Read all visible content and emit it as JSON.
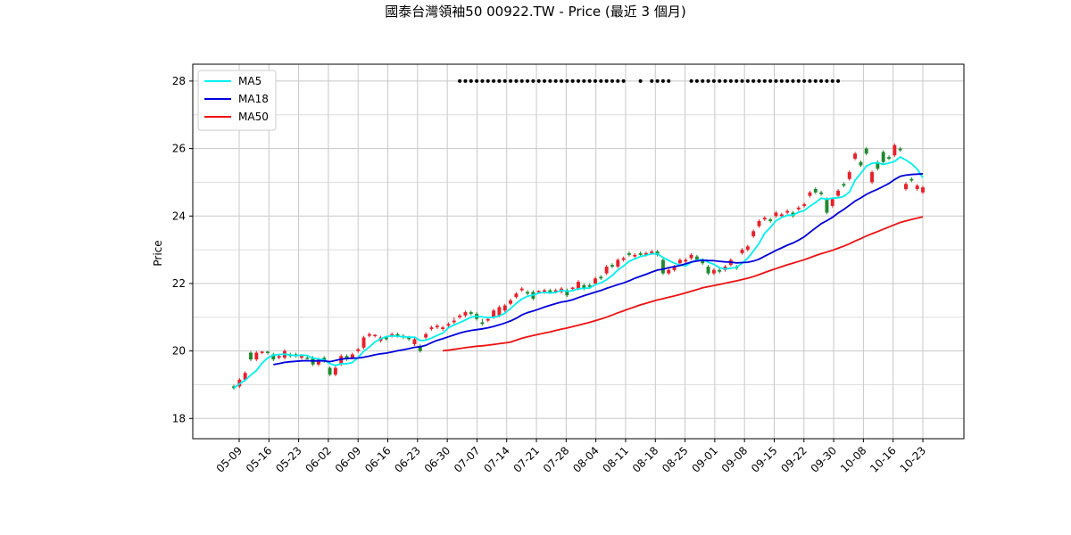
{
  "chart_data": {
    "type": "candlestick",
    "title": "國泰台灣領袖50 00922.TW - Price (最近 3 個月)",
    "ylabel": "Price",
    "xlabel": "",
    "ylim": [
      17.4,
      28.5
    ],
    "yticks": [
      18,
      20,
      22,
      24,
      26,
      28
    ],
    "xtick_labels": [
      "05-09",
      "05-16",
      "05-23",
      "06-02",
      "06-09",
      "06-16",
      "06-23",
      "06-30",
      "07-07",
      "07-14",
      "07-21",
      "07-28",
      "08-04",
      "08-11",
      "08-18",
      "08-25",
      "09-01",
      "09-08",
      "09-15",
      "09-22",
      "09-30",
      "10-08",
      "10-16",
      "10-23"
    ],
    "grid": true,
    "legend_position": "upper-left",
    "up_color": "#e8202a",
    "down_color": "#1f8a2e",
    "series": [
      {
        "name": "MA5",
        "color": "#00f0f0"
      },
      {
        "name": "MA18",
        "color": "#0000dd"
      },
      {
        "name": "MA50",
        "color": "#ee1111"
      }
    ],
    "candles": [
      [
        18.95,
        18.9,
        19.0,
        18.85
      ],
      [
        18.95,
        19.15,
        19.2,
        18.9
      ],
      [
        19.15,
        19.35,
        19.4,
        19.1
      ],
      [
        19.95,
        19.75,
        20.0,
        19.7
      ],
      [
        19.75,
        19.95,
        20.0,
        19.7
      ],
      [
        19.95,
        19.98,
        20.0,
        19.9
      ],
      [
        19.98,
        19.95,
        20.0,
        19.9
      ],
      [
        19.9,
        19.75,
        19.95,
        19.7
      ],
      [
        19.8,
        19.85,
        19.9,
        19.75
      ],
      [
        19.8,
        20.0,
        20.05,
        19.75
      ],
      [
        19.9,
        19.85,
        19.95,
        19.8
      ],
      [
        19.9,
        19.85,
        19.95,
        19.8
      ],
      [
        19.8,
        19.85,
        19.9,
        19.75
      ],
      [
        19.8,
        19.78,
        19.85,
        19.75
      ],
      [
        19.8,
        19.6,
        19.85,
        19.55
      ],
      [
        19.6,
        19.75,
        19.8,
        19.55
      ],
      [
        19.8,
        19.7,
        19.85,
        19.65
      ],
      [
        19.5,
        19.3,
        19.55,
        19.25
      ],
      [
        19.3,
        19.5,
        19.55,
        19.25
      ],
      [
        19.6,
        19.85,
        19.9,
        19.55
      ],
      [
        19.85,
        19.75,
        19.9,
        19.7
      ],
      [
        19.8,
        19.9,
        19.95,
        19.75
      ],
      [
        20.0,
        20.05,
        20.1,
        19.95
      ],
      [
        20.1,
        20.4,
        20.45,
        20.05
      ],
      [
        20.45,
        20.5,
        20.55,
        20.4
      ],
      [
        20.45,
        20.48,
        20.5,
        20.4
      ],
      [
        20.3,
        20.4,
        20.45,
        20.25
      ],
      [
        20.4,
        20.35,
        20.45,
        20.3
      ],
      [
        20.45,
        20.5,
        20.55,
        20.4
      ],
      [
        20.5,
        20.45,
        20.55,
        20.4
      ],
      [
        20.45,
        20.4,
        20.5,
        20.35
      ],
      [
        20.4,
        20.35,
        20.45,
        20.3
      ],
      [
        20.2,
        20.35,
        20.4,
        20.15
      ],
      [
        20.15,
        20.0,
        20.2,
        19.95
      ],
      [
        20.4,
        20.5,
        20.55,
        20.35
      ],
      [
        20.65,
        20.7,
        20.75,
        20.6
      ],
      [
        20.7,
        20.75,
        20.8,
        20.65
      ],
      [
        20.65,
        20.7,
        20.75,
        20.6
      ],
      [
        20.75,
        20.8,
        20.85,
        20.7
      ],
      [
        20.85,
        20.9,
        21.0,
        20.8
      ],
      [
        21.0,
        21.05,
        21.1,
        20.95
      ],
      [
        21.05,
        21.15,
        21.2,
        21.0
      ],
      [
        21.15,
        21.1,
        21.2,
        21.05
      ],
      [
        21.1,
        20.95,
        21.15,
        20.9
      ],
      [
        20.85,
        20.8,
        20.95,
        20.75
      ],
      [
        20.9,
        20.95,
        21.0,
        20.85
      ],
      [
        21.0,
        21.2,
        21.25,
        20.95
      ],
      [
        21.05,
        21.3,
        21.35,
        21.0
      ],
      [
        21.2,
        21.35,
        21.4,
        21.15
      ],
      [
        21.4,
        21.5,
        21.55,
        21.35
      ],
      [
        21.6,
        21.7,
        21.75,
        21.55
      ],
      [
        21.8,
        21.85,
        21.9,
        21.75
      ],
      [
        21.75,
        21.7,
        21.8,
        21.65
      ],
      [
        21.75,
        21.55,
        21.8,
        21.5
      ],
      [
        21.75,
        21.78,
        21.8,
        21.7
      ],
      [
        21.75,
        21.8,
        21.85,
        21.7
      ],
      [
        21.8,
        21.75,
        21.85,
        21.7
      ],
      [
        21.75,
        21.8,
        21.85,
        21.7
      ],
      [
        21.75,
        21.85,
        21.9,
        21.7
      ],
      [
        21.8,
        21.65,
        21.85,
        21.6
      ],
      [
        21.85,
        21.88,
        21.9,
        21.8
      ],
      [
        21.85,
        22.05,
        22.1,
        21.8
      ],
      [
        21.95,
        21.85,
        22.0,
        21.8
      ],
      [
        21.95,
        21.9,
        22.0,
        21.85
      ],
      [
        22.0,
        22.15,
        22.2,
        21.95
      ],
      [
        22.2,
        22.15,
        22.25,
        22.1
      ],
      [
        22.3,
        22.5,
        22.55,
        22.25
      ],
      [
        22.55,
        22.5,
        22.6,
        22.45
      ],
      [
        22.5,
        22.7,
        22.75,
        22.45
      ],
      [
        22.7,
        22.75,
        22.8,
        22.65
      ],
      [
        22.9,
        22.85,
        22.95,
        22.8
      ],
      [
        22.8,
        22.85,
        22.9,
        22.75
      ],
      [
        22.9,
        22.85,
        22.95,
        22.8
      ],
      [
        22.85,
        22.9,
        22.95,
        22.8
      ],
      [
        22.9,
        22.95,
        23.0,
        22.85
      ],
      [
        22.95,
        22.85,
        23.0,
        22.8
      ],
      [
        22.7,
        22.3,
        22.75,
        22.25
      ],
      [
        22.3,
        22.4,
        22.45,
        22.25
      ],
      [
        22.4,
        22.5,
        22.55,
        22.35
      ],
      [
        22.6,
        22.7,
        22.75,
        22.55
      ],
      [
        22.65,
        22.7,
        22.75,
        22.6
      ],
      [
        22.75,
        22.85,
        22.9,
        22.7
      ],
      [
        22.8,
        22.7,
        22.85,
        22.65
      ],
      [
        22.7,
        22.6,
        22.75,
        22.55
      ],
      [
        22.5,
        22.3,
        22.55,
        22.25
      ],
      [
        22.3,
        22.4,
        22.45,
        22.25
      ],
      [
        22.4,
        22.35,
        22.45,
        22.3
      ],
      [
        22.4,
        22.5,
        22.55,
        22.35
      ],
      [
        22.55,
        22.7,
        22.75,
        22.5
      ],
      [
        22.5,
        22.45,
        22.55,
        22.4
      ],
      [
        22.9,
        23.0,
        23.05,
        22.85
      ],
      [
        23.0,
        23.1,
        23.15,
        22.95
      ],
      [
        23.4,
        23.55,
        23.6,
        23.35
      ],
      [
        23.7,
        23.85,
        23.9,
        23.65
      ],
      [
        23.9,
        23.95,
        24.0,
        23.85
      ],
      [
        23.9,
        23.85,
        23.95,
        23.8
      ],
      [
        24.0,
        24.1,
        24.15,
        23.95
      ],
      [
        24.0,
        24.05,
        24.1,
        23.95
      ],
      [
        24.1,
        24.15,
        24.2,
        24.05
      ],
      [
        24.1,
        24.0,
        24.15,
        23.95
      ],
      [
        24.2,
        24.25,
        24.3,
        24.15
      ],
      [
        24.3,
        24.35,
        24.4,
        24.25
      ],
      [
        24.6,
        24.7,
        24.75,
        24.55
      ],
      [
        24.8,
        24.7,
        24.85,
        24.65
      ],
      [
        24.7,
        24.65,
        24.75,
        24.6
      ],
      [
        24.5,
        24.1,
        24.55,
        24.05
      ],
      [
        24.3,
        24.5,
        24.55,
        24.25
      ],
      [
        24.6,
        24.75,
        24.8,
        24.55
      ],
      [
        24.95,
        24.9,
        25.0,
        24.85
      ],
      [
        25.1,
        25.3,
        25.35,
        25.05
      ],
      [
        25.7,
        25.85,
        25.9,
        25.65
      ],
      [
        25.6,
        25.5,
        25.65,
        25.45
      ],
      [
        26.0,
        25.85,
        26.05,
        25.8
      ],
      [
        25.0,
        25.3,
        25.35,
        24.95
      ],
      [
        25.6,
        25.4,
        25.65,
        25.35
      ],
      [
        25.9,
        25.6,
        25.95,
        25.55
      ],
      [
        25.75,
        25.7,
        25.8,
        25.65
      ],
      [
        25.8,
        26.1,
        26.15,
        25.75
      ],
      [
        26.0,
        25.95,
        26.05,
        25.9
      ],
      [
        24.8,
        24.95,
        25.0,
        24.75
      ],
      [
        25.1,
        25.05,
        25.15,
        25.0
      ],
      [
        24.8,
        24.9,
        24.95,
        24.75
      ],
      [
        24.7,
        24.85,
        24.9,
        24.65
      ]
    ],
    "marker_level": 28,
    "marker_segments": [
      [
        40,
        69
      ],
      [
        72,
        72
      ],
      [
        74,
        77
      ],
      [
        81,
        107
      ]
    ]
  }
}
